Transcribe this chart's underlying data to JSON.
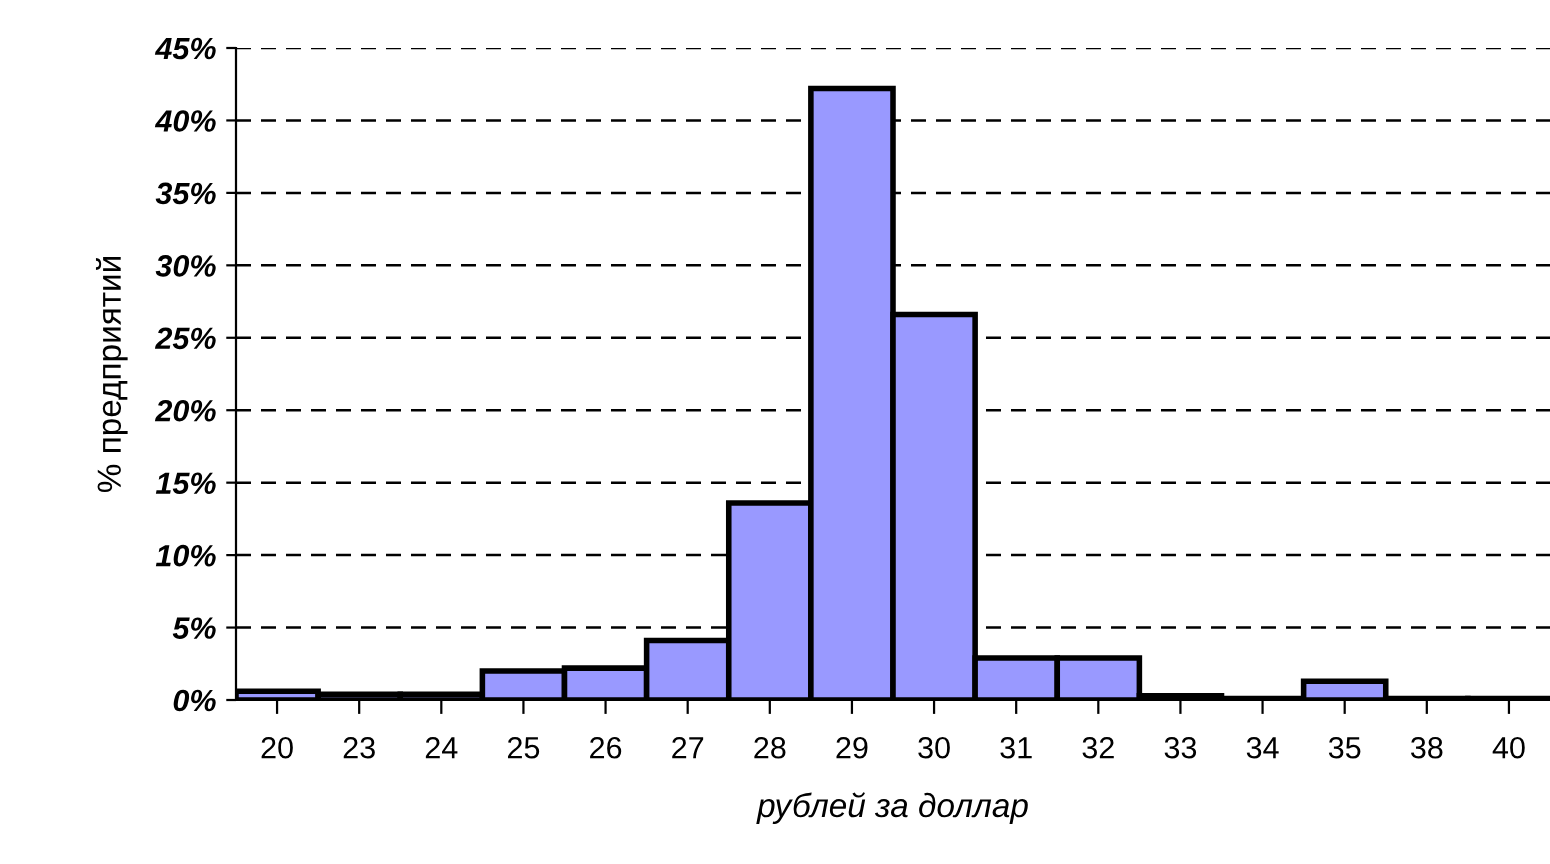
{
  "chart_data": {
    "type": "bar",
    "categories": [
      "20",
      "23",
      "24",
      "25",
      "26",
      "27",
      "28",
      "29",
      "30",
      "31",
      "32",
      "33",
      "34",
      "35",
      "38",
      "40"
    ],
    "values": [
      0.6,
      0.4,
      0.4,
      2.0,
      2.2,
      4.1,
      13.6,
      42.2,
      26.6,
      2.9,
      2.9,
      0.3,
      0.1,
      1.3,
      0.1,
      0.1
    ],
    "color": "#9999ff",
    "xlabel": "рублей за доллар",
    "ylabel": "% предприятий",
    "ylim": [
      0,
      45
    ],
    "yticks": [
      {
        "value": 0,
        "label": "0%"
      },
      {
        "value": 5,
        "label": "5%"
      },
      {
        "value": 10,
        "label": "10%"
      },
      {
        "value": 15,
        "label": "15%"
      },
      {
        "value": 20,
        "label": "20%"
      },
      {
        "value": 25,
        "label": "25%"
      },
      {
        "value": 30,
        "label": "30%"
      },
      {
        "value": 35,
        "label": "35%"
      },
      {
        "value": 40,
        "label": "40%"
      },
      {
        "value": 45,
        "label": "45%"
      }
    ],
    "grid": "y"
  }
}
